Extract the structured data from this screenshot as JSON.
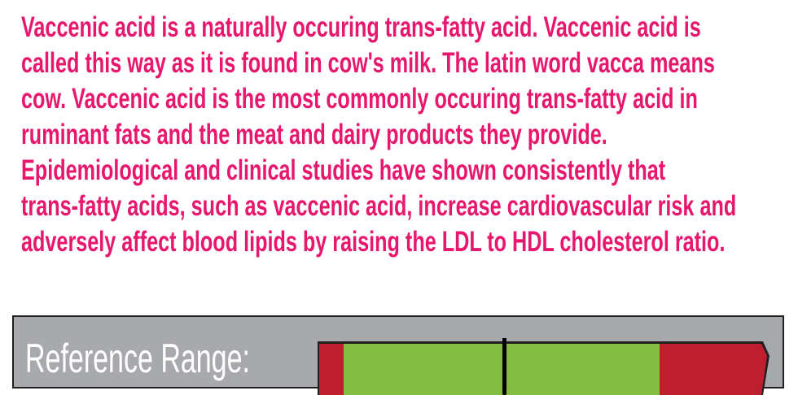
{
  "description": {
    "lines": [
      "Vaccenic acid is a naturally occuring trans-fatty acid. Vaccenic acid is",
      "called this way as it is found in cow's milk. The latin word vacca means",
      "cow. Vaccenic acid is the most commonly occuring trans-fatty acid in",
      "ruminant fats and the meat and dairy products they provide.",
      "Epidemiological and clinical studies have shown consistently that",
      "trans-fatty acids, such as vaccenic acid, increase cardiovascular risk and",
      "adversely affect blood lipids by raising the LDL to HDL cholesterol ratio."
    ]
  },
  "reference": {
    "label": "Reference Range:",
    "colors": {
      "low": "#be1e2d",
      "normal": "#82bc41",
      "high": "#be1e2d",
      "panel": "#a7a9ac",
      "text": "#e8176e"
    }
  }
}
